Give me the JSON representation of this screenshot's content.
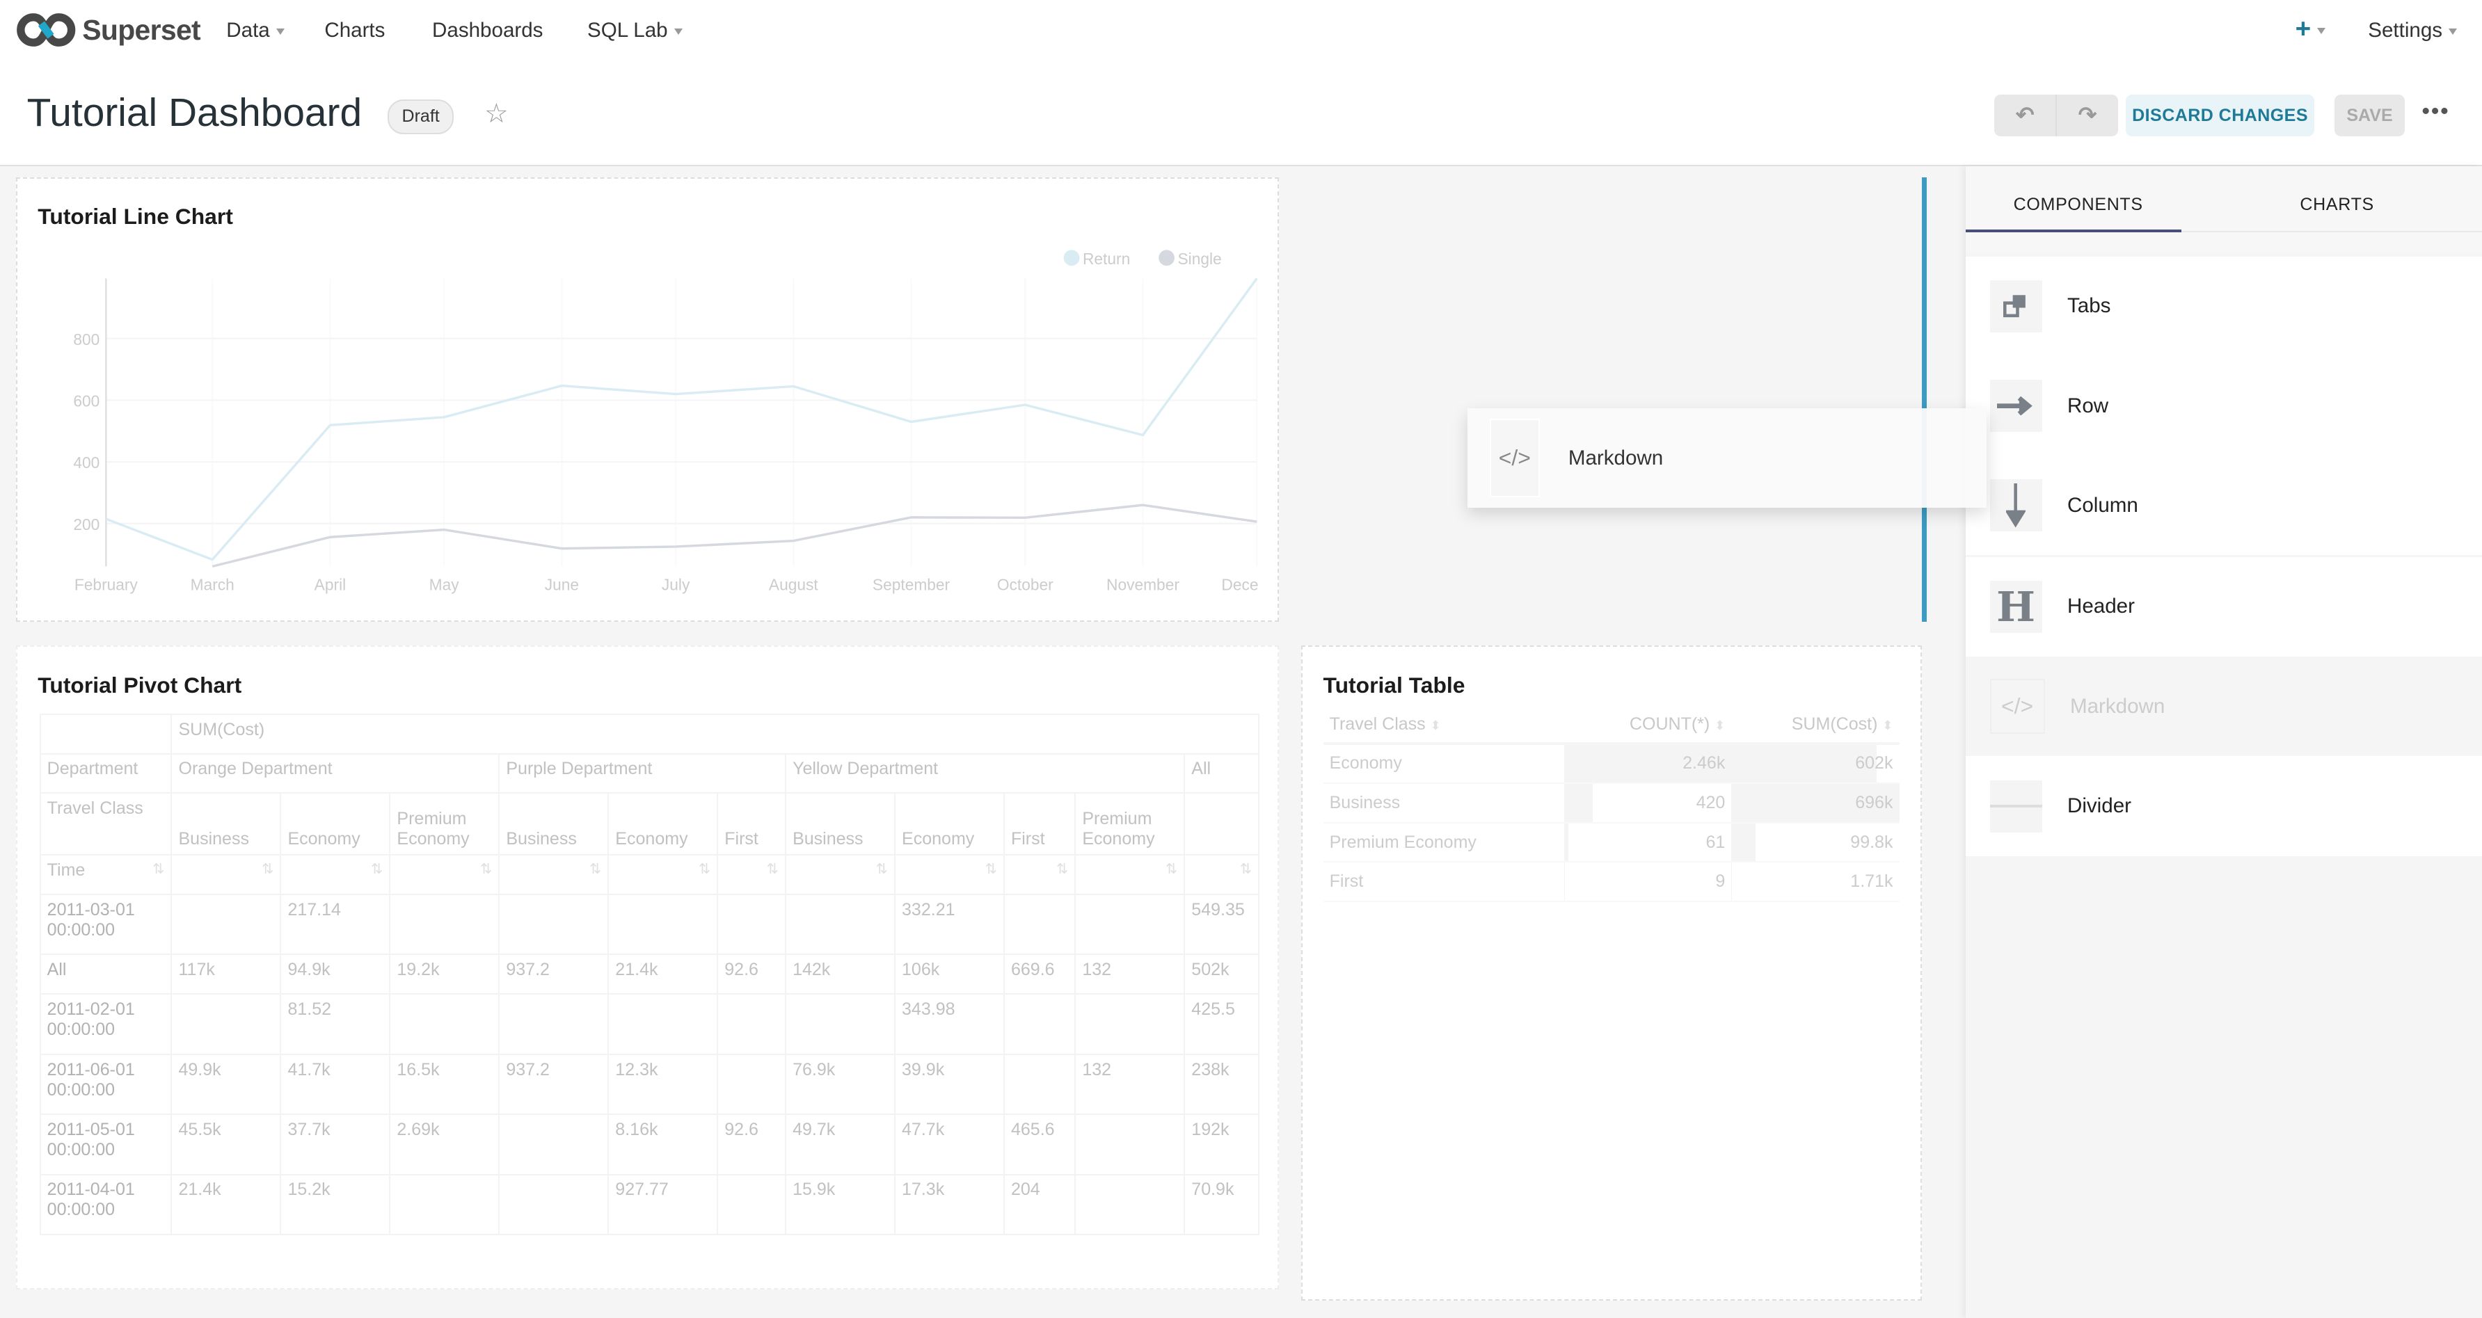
{
  "nav": {
    "brand": "Superset",
    "menu": [
      {
        "label": "Data",
        "dropdown": true
      },
      {
        "label": "Charts",
        "dropdown": false
      },
      {
        "label": "Dashboards",
        "dropdown": false
      },
      {
        "label": "SQL Lab",
        "dropdown": true
      }
    ],
    "settings_label": "Settings",
    "accent": "#1f7a97"
  },
  "header": {
    "title": "Tutorial Dashboard",
    "status_badge": "Draft",
    "discard_label": "DISCARD CHANGES",
    "save_label": "SAVE",
    "more_label": "•••"
  },
  "line_chart": {
    "title": "Tutorial Line Chart",
    "chart_data": {
      "type": "line",
      "x": [
        "2011-02-01",
        "2011-03-01",
        "2011-04-01",
        "2011-05-01",
        "2011-06-01",
        "2011-07-01",
        "2011-08-01",
        "2011-09-01",
        "2011-10-01",
        "2011-11-01",
        "2011-12-01"
      ],
      "x_tick_labels": [
        "February",
        "March",
        "April",
        "May",
        "June",
        "July",
        "August",
        "September",
        "October",
        "November",
        "Dece"
      ],
      "y_ticks": [
        200,
        400,
        600,
        800
      ],
      "ylim": [
        61,
        995
      ],
      "grid": true,
      "legend_position": "top-right",
      "series": [
        {
          "name": "Return",
          "color": "#d9ecf3",
          "values": [
            215,
            83,
            519,
            545,
            647,
            620,
            645,
            530,
            585,
            487,
            1000
          ]
        },
        {
          "name": "Single",
          "color": "#d5d8de",
          "values": [
            null,
            61,
            156,
            180,
            119,
            125,
            144,
            220,
            219,
            260,
            206
          ]
        }
      ]
    }
  },
  "drag_ghost": {
    "label": "Markdown"
  },
  "pivot": {
    "title": "Tutorial Pivot Chart",
    "metric": "SUM(Cost)",
    "dept_label": "Department",
    "class_label": "Travel Class",
    "time_label": "Time",
    "departments": [
      {
        "name": "Orange Department",
        "span": 3
      },
      {
        "name": "Purple Department",
        "span": 3
      },
      {
        "name": "Yellow Department",
        "span": 4
      },
      {
        "name": "All",
        "span": 1
      }
    ],
    "classes": [
      "Business",
      "Economy",
      "Premium Economy",
      "Business",
      "Economy",
      "First",
      "Business",
      "Economy",
      "First",
      "Premium Economy",
      ""
    ],
    "rows": [
      {
        "label": "2011-03-01 00:00:00",
        "cells": [
          "",
          "217.14",
          "",
          "",
          "",
          "",
          "",
          "332.21",
          "",
          "",
          "549.35"
        ]
      },
      {
        "label": "All",
        "cells": [
          "117k",
          "94.9k",
          "19.2k",
          "937.2",
          "21.4k",
          "92.6",
          "142k",
          "106k",
          "669.6",
          "132",
          "502k"
        ]
      },
      {
        "label": "2011-02-01 00:00:00",
        "cells": [
          "",
          "81.52",
          "",
          "",
          "",
          "",
          "",
          "343.98",
          "",
          "",
          "425.5"
        ]
      },
      {
        "label": "2011-06-01 00:00:00",
        "cells": [
          "49.9k",
          "41.7k",
          "16.5k",
          "937.2",
          "12.3k",
          "",
          "76.9k",
          "39.9k",
          "",
          "132",
          "238k"
        ]
      },
      {
        "label": "2011-05-01 00:00:00",
        "cells": [
          "45.5k",
          "37.7k",
          "2.69k",
          "",
          "8.16k",
          "92.6",
          "49.7k",
          "47.7k",
          "465.6",
          "",
          "192k"
        ]
      },
      {
        "label": "2011-04-01 00:00:00",
        "cells": [
          "21.4k",
          "15.2k",
          "",
          "",
          "927.77",
          "",
          "15.9k",
          "17.3k",
          "204",
          "",
          "70.9k"
        ]
      }
    ]
  },
  "table": {
    "title": "Tutorial Table",
    "columns": [
      "Travel Class",
      "COUNT(*)",
      "SUM(Cost)"
    ],
    "rows": [
      [
        "Economy",
        "2.46k",
        "602k"
      ],
      [
        "Business",
        "420",
        "696k"
      ],
      [
        "Premium Economy",
        "61",
        "99.8k"
      ],
      [
        "First",
        "9",
        "1.71k"
      ]
    ]
  },
  "panel": {
    "tabs": [
      "COMPONENTS",
      "CHARTS"
    ],
    "components": [
      {
        "label": "Tabs",
        "icon": "tabs-icon"
      },
      {
        "label": "Row",
        "icon": "arrow-right-icon"
      },
      {
        "label": "Column",
        "icon": "arrow-down-icon"
      },
      {
        "label": "Header",
        "icon": "header-icon"
      },
      {
        "label": "Markdown",
        "icon": "code-icon"
      },
      {
        "label": "Divider",
        "icon": "divider-icon"
      }
    ]
  }
}
